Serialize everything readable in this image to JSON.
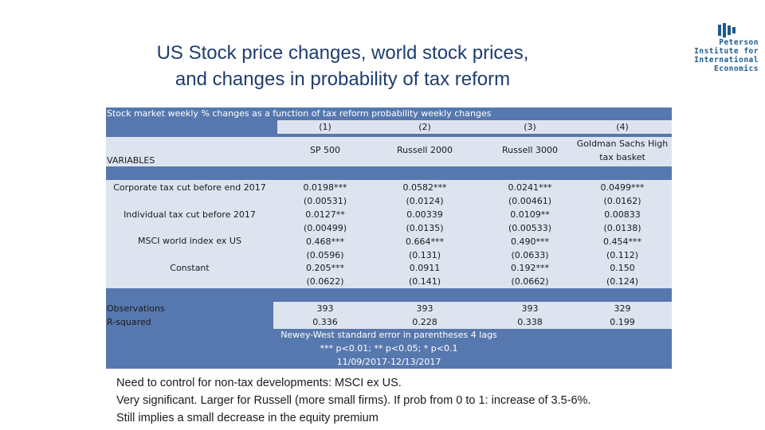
{
  "title": {
    "line1": "US Stock price changes, world stock prices,",
    "line2": "and changes in probability of tax reform"
  },
  "logo": {
    "lines": [
      "Peterson",
      "Institute for",
      "International",
      "Economics"
    ]
  },
  "table": {
    "caption": "Stock market weekly % changes as a function of tax reform probability weekly changes",
    "col_numbers": [
      "(1)",
      "(2)",
      "(3)",
      "(4)"
    ],
    "col_names": [
      "SP 500",
      "Russell 2000",
      "Russell 3000",
      "Goldman Sachs High tax basket"
    ],
    "variables_label": "VARIABLES",
    "row_labels": [
      "Corporate tax cut before end 2017",
      "Individual tax cut before 2017",
      "MSCI world index ex US",
      "Constant"
    ],
    "stat_columns": [
      [
        "0.0198***",
        "(0.00531)",
        "0.0127**",
        "(0.00499)",
        "0.468***",
        "(0.0596)",
        "0.205***",
        "(0.0622)"
      ],
      [
        "0.0582***",
        "(0.0124)",
        "0.00339",
        "(0.0135)",
        "0.664***",
        "(0.131)",
        "0.0911",
        "(0.141)"
      ],
      [
        "0.0241***",
        "(0.00461)",
        "0.0109**",
        "(0.00533)",
        "0.490***",
        "(0.0633)",
        "0.192***",
        "(0.0662)"
      ],
      [
        "0.0499***",
        "(0.0162)",
        "0.00833",
        "(0.0138)",
        "0.454***",
        "(0.112)",
        "0.150",
        "(0.124)"
      ]
    ],
    "obs_label": "Observations",
    "rsq_label": "R-squared",
    "observations": [
      "393",
      "393",
      "393",
      "329"
    ],
    "rsquared": [
      "0.336",
      "0.228",
      "0.338",
      "0.199"
    ],
    "note1": "Newey-West standard error in parentheses 4 lags",
    "note2": "*** p<0.01; ** p<0.05; * p<0.1",
    "note3": "11/09/2017-12/13/2017"
  },
  "body": {
    "line1": "Need to control for non-tax developments: MSCI ex US.",
    "line2": "Very significant.  Larger for Russell (more small firms).  If prob from 0 to 1:  increase of 3.5-6%.",
    "line3": "Still implies a small decrease in the equity premium"
  },
  "colors": {
    "title": "#1f3d6e",
    "table_band": "#5778ae",
    "table_bg": "#dde4f0",
    "logo": "#1e5a8c"
  }
}
